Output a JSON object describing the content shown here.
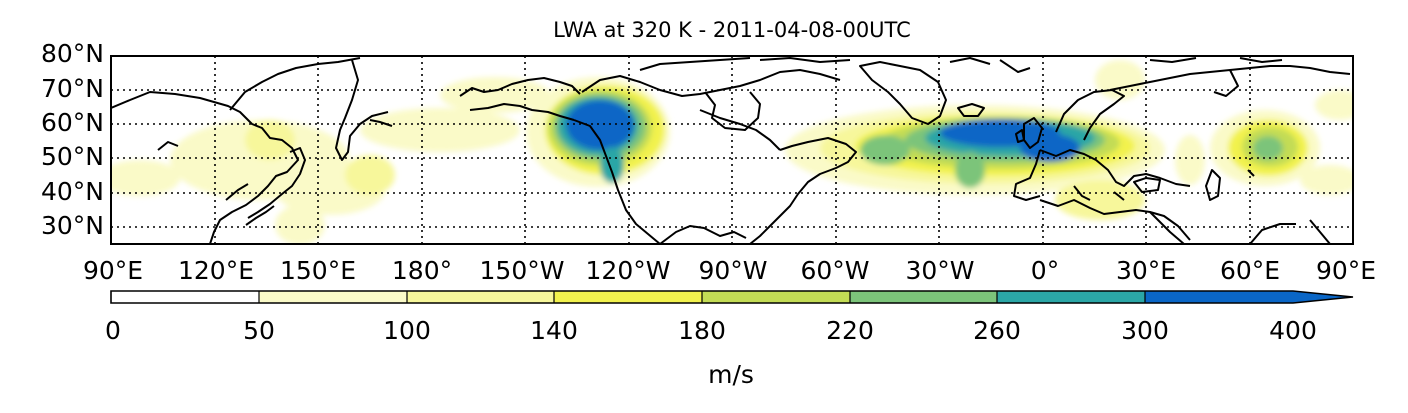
{
  "title": "LWA at 320 K -  2011-04-08-00UTC",
  "lat_labels": [
    "80°N",
    "70°N",
    "60°N",
    "50°N",
    "40°N",
    "30°N"
  ],
  "lon_labels": [
    "90°E",
    "120°E",
    "150°E",
    "180°",
    "150°W",
    "120°W",
    "90°W",
    "60°W",
    "30°W",
    "0°",
    "30°E",
    "60°E",
    "90°E"
  ],
  "colorbar": {
    "ticks": [
      "0",
      "50",
      "100",
      "140",
      "180",
      "220",
      "260",
      "300",
      "400"
    ],
    "unit": "m/s",
    "colors": [
      "#ffffff",
      "#fafac8",
      "#f7f79b",
      "#f2f24e",
      "#c3dc55",
      "#7cc47a",
      "#2ba6a6",
      "#0a66c6"
    ],
    "extend": "max",
    "extend_color": "#0a66c6"
  },
  "map": {
    "projection": "cylindrical",
    "lon_range": [
      90,
      450
    ],
    "lat_range": [
      25,
      80
    ],
    "grid": "dotted",
    "coastlines": true
  }
}
